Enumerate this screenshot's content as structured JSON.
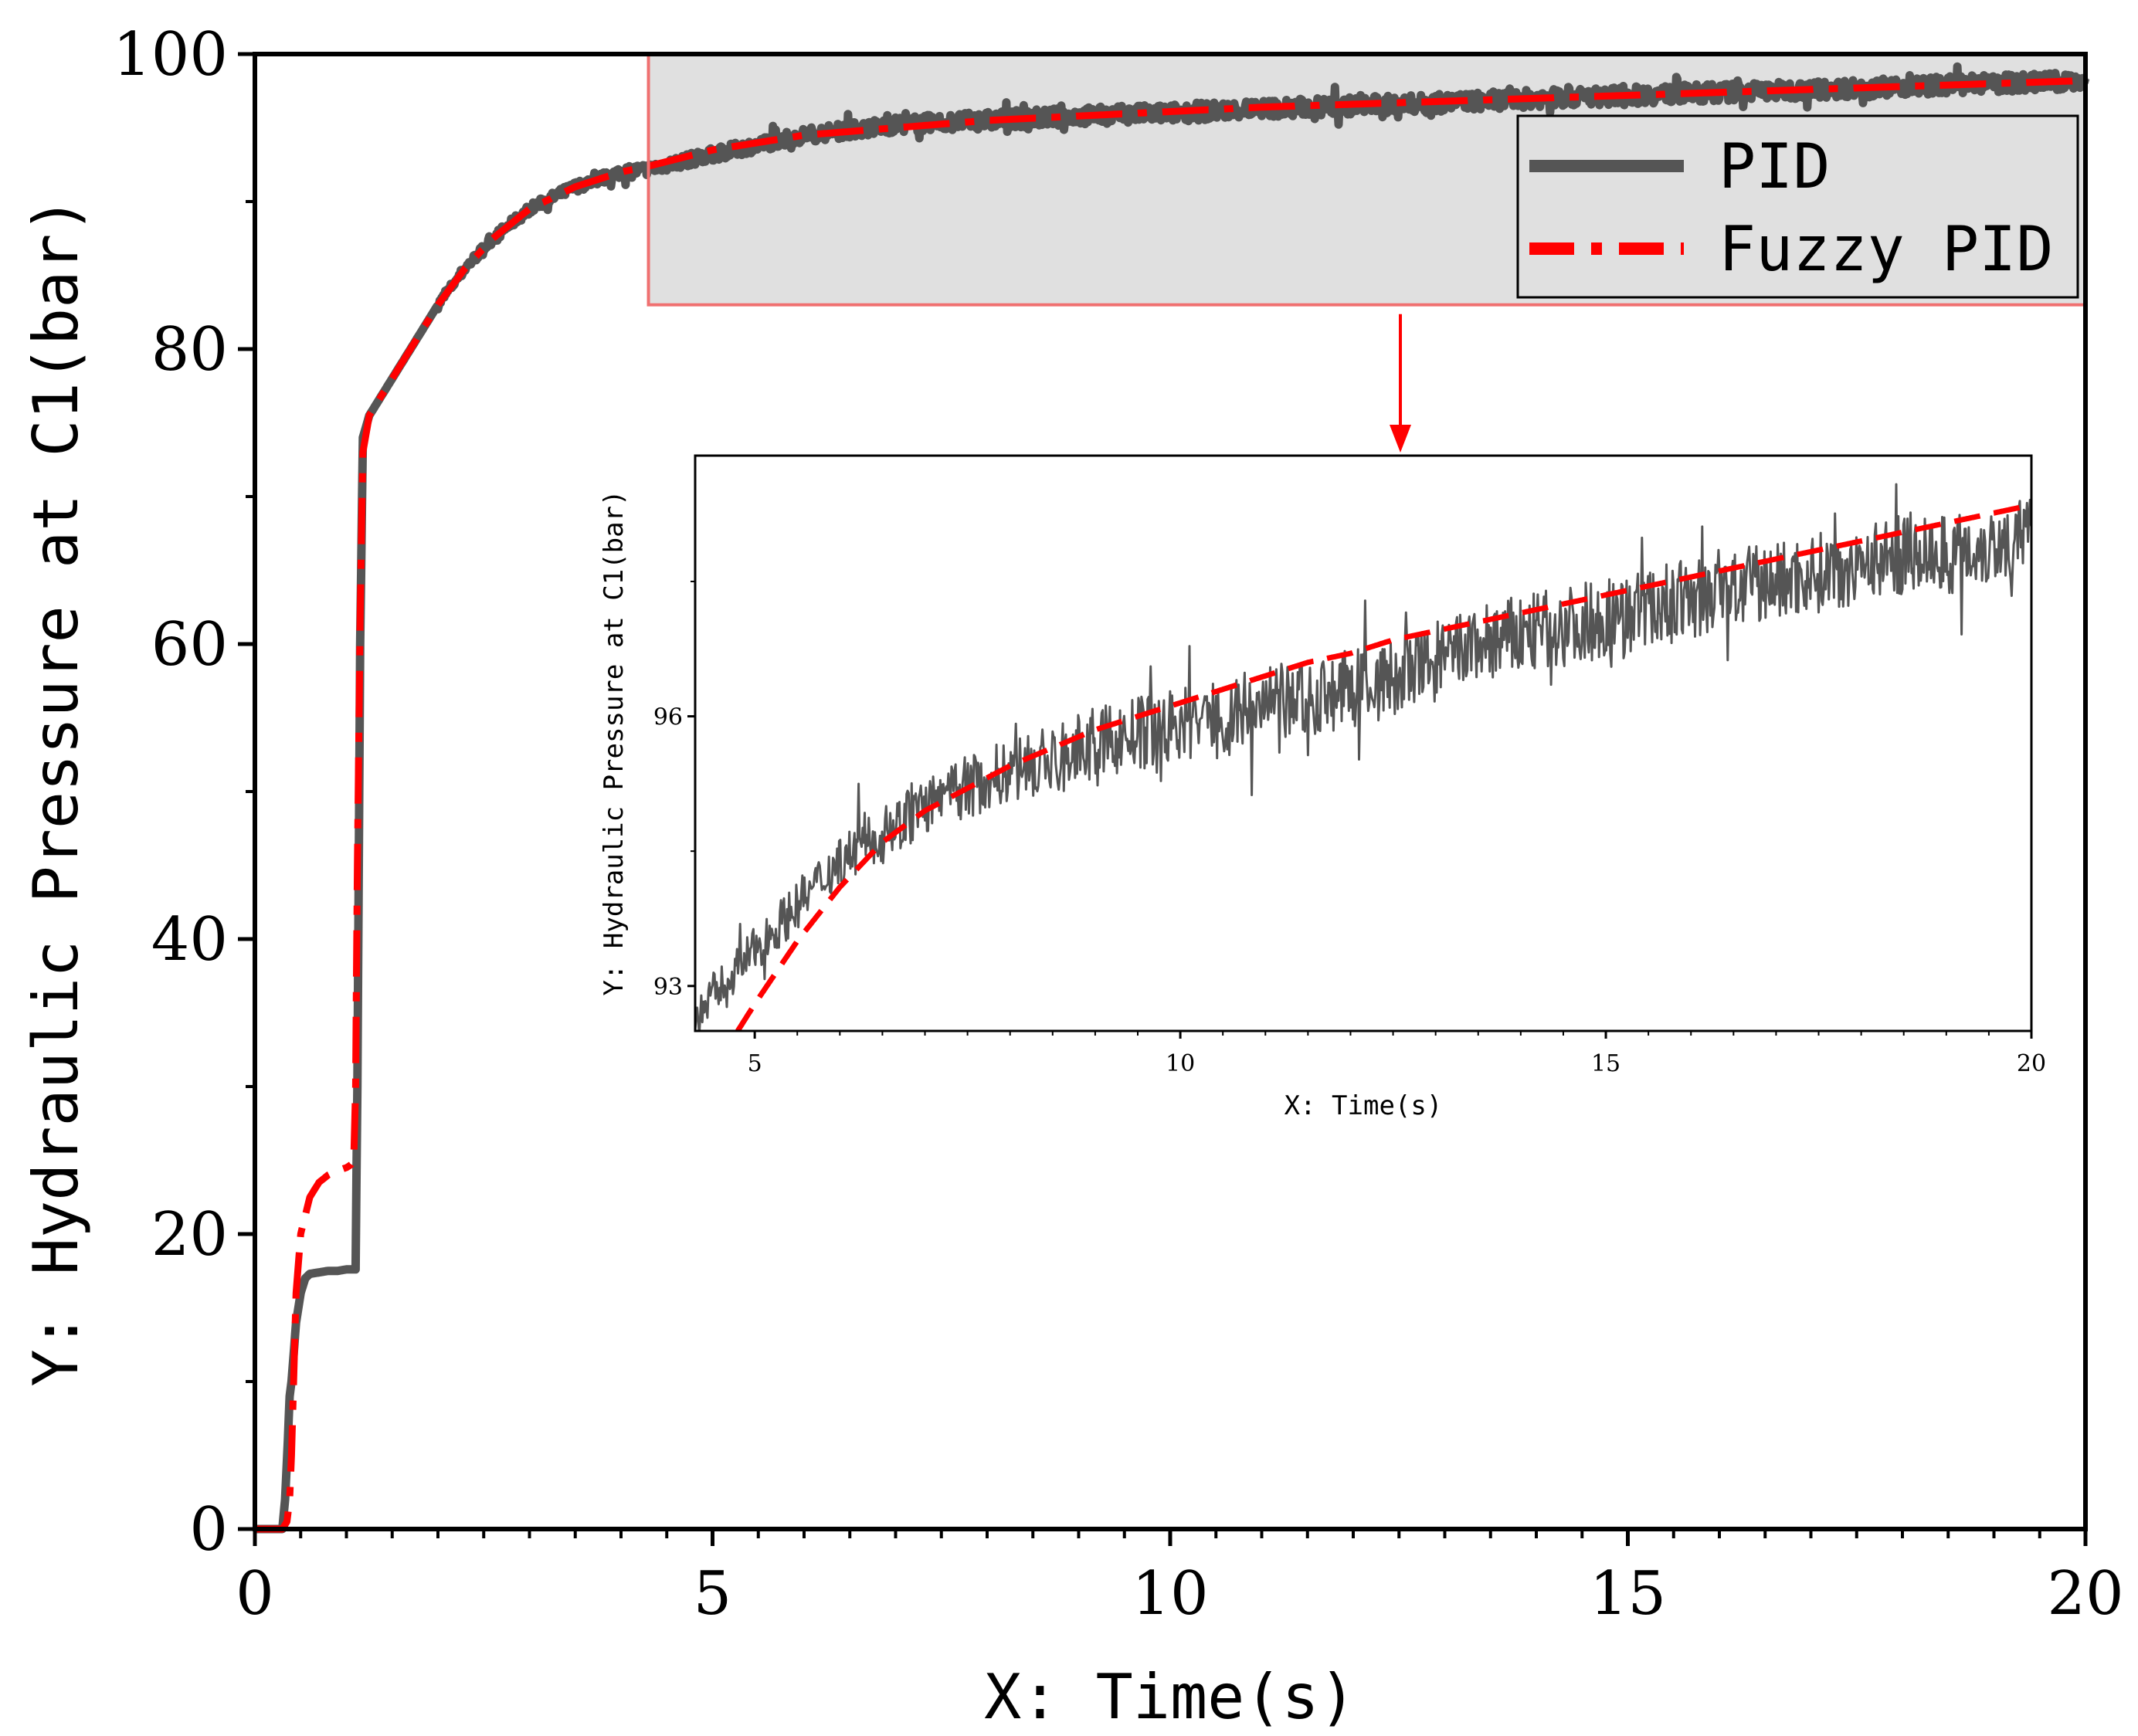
{
  "chart_data": [
    {
      "type": "line",
      "role": "main",
      "title": "",
      "xlabel": "X: Time(s)",
      "ylabel": "Y: Hydraulic Pressure at C1(bar)",
      "xlim": [
        0,
        20
      ],
      "ylim": [
        0,
        100
      ],
      "xticks": [
        0,
        5,
        10,
        15,
        20
      ],
      "yticks": [
        0,
        20,
        40,
        60,
        80,
        100
      ],
      "xtick_labels": [
        "0",
        "5",
        "10",
        "15",
        "20"
      ],
      "ytick_labels": [
        "0",
        "20",
        "40",
        "60",
        "80",
        "100"
      ],
      "grid": false,
      "legend": {
        "position": "top-right",
        "entries": [
          "PID",
          "Fuzzy PID"
        ]
      },
      "zoom_region": {
        "x": [
          4.3,
          20
        ],
        "y": [
          83,
          100
        ]
      },
      "series": [
        {
          "name": "PID",
          "color": "#555555",
          "style": "solid",
          "noise": 0.6,
          "x": [
            0,
            0.3,
            0.33,
            0.36,
            0.38,
            0.4,
            0.45,
            0.5,
            0.55,
            0.6,
            0.7,
            0.8,
            0.9,
            1.0,
            1.05,
            1.1,
            1.12,
            1.15,
            1.18,
            1.25,
            1.4,
            1.6,
            1.8,
            2.0,
            2.3,
            2.6,
            3.0,
            3.5,
            4.0,
            4.3,
            5.0,
            6.0,
            7.0,
            8.0,
            9.0,
            10.0,
            11.0,
            12.0,
            13.0,
            14.0,
            15.0,
            16.0,
            17.0,
            18.0,
            19.0,
            20.0
          ],
          "y": [
            0,
            0,
            2,
            6,
            9,
            10,
            14,
            16,
            17,
            17.3,
            17.4,
            17.5,
            17.5,
            17.6,
            17.6,
            17.6,
            30,
            60,
            74,
            75.5,
            77,
            79,
            81,
            83,
            85.5,
            87.5,
            89.5,
            91,
            92,
            92.2,
            93.2,
            94.5,
            95.2,
            95.5,
            95.8,
            96.0,
            96.3,
            96.5,
            96.7,
            97.0,
            97.2,
            97.4,
            97.6,
            97.8,
            98.0,
            98.2
          ]
        },
        {
          "name": "Fuzzy PID",
          "color": "#ff0000",
          "style": "dash-dot",
          "noise": 0,
          "x": [
            0,
            0.3,
            0.35,
            0.38,
            0.4,
            0.45,
            0.5,
            0.6,
            0.7,
            0.8,
            0.9,
            1.0,
            1.05,
            1.08,
            1.1,
            1.12,
            1.15,
            1.18,
            1.25,
            1.4,
            1.6,
            1.8,
            2.0,
            2.3,
            2.6,
            3.0,
            3.5,
            4.0,
            4.3,
            5.0,
            6.0,
            7.0,
            8.0,
            9.0,
            10.0,
            11.0,
            12.0,
            13.0,
            14.0,
            15.0,
            16.0,
            17.0,
            18.0,
            19.0,
            20.0
          ],
          "y": [
            0,
            0,
            0.5,
            2,
            5,
            16,
            20,
            22.5,
            23.5,
            24,
            24.3,
            24.5,
            24.7,
            25,
            30,
            45,
            62,
            73,
            75.5,
            77,
            79,
            81,
            83,
            85.5,
            87.5,
            89.5,
            91,
            92,
            92.4,
            93.5,
            94.5,
            95.0,
            95.5,
            95.8,
            96.1,
            96.4,
            96.6,
            96.8,
            97.0,
            97.2,
            97.4,
            97.6,
            97.8,
            98.0,
            98.2
          ]
        }
      ]
    },
    {
      "type": "line",
      "role": "inset",
      "title": "",
      "xlabel": "X: Time(s)",
      "ylabel": "Y: Hydraulic Pressure at C1(bar)",
      "xlim": [
        4.3,
        20
      ],
      "ylim": [
        92.5,
        98.9
      ],
      "xticks": [
        5,
        10,
        15,
        20
      ],
      "yticks": [
        93,
        96
      ],
      "xtick_labels": [
        "5",
        "10",
        "15",
        "20"
      ],
      "ytick_labels": [
        "93",
        "96"
      ],
      "grid": false,
      "series": [
        {
          "name": "PID",
          "color": "#555555",
          "style": "solid",
          "noise": 0.45,
          "x": [
            4.3,
            4.5,
            5.0,
            5.5,
            6.0,
            6.5,
            7.0,
            7.5,
            8.0,
            8.5,
            9.0,
            9.5,
            10.0,
            10.5,
            11.0,
            11.5,
            12.0,
            12.5,
            13.0,
            13.5,
            14.0,
            14.5,
            15.0,
            15.5,
            16.0,
            16.5,
            17.0,
            17.5,
            18.0,
            18.5,
            19.0,
            19.5,
            20.0
          ],
          "y": [
            92.6,
            92.9,
            93.4,
            93.9,
            94.4,
            94.7,
            95.0,
            95.2,
            95.4,
            95.5,
            95.7,
            95.8,
            95.9,
            96.0,
            96.1,
            96.2,
            96.3,
            96.4,
            96.6,
            96.8,
            96.9,
            97.0,
            97.1,
            97.2,
            97.3,
            97.4,
            97.5,
            97.6,
            97.7,
            97.8,
            97.8,
            97.9,
            98.0
          ]
        },
        {
          "name": "Fuzzy PID",
          "color": "#ff0000",
          "style": "dashed",
          "noise": 0,
          "x": [
            4.8,
            5.0,
            5.5,
            6.0,
            6.5,
            7.0,
            7.5,
            8.0,
            8.5,
            9.0,
            9.5,
            10.0,
            10.5,
            11.0,
            11.5,
            12.0,
            12.5,
            13.0,
            13.5,
            14.0,
            14.5,
            15.0,
            15.5,
            16.0,
            16.5,
            17.0,
            17.5,
            18.0,
            18.5,
            19.0,
            19.5,
            20.0
          ],
          "y": [
            92.5,
            92.8,
            93.5,
            94.1,
            94.6,
            94.95,
            95.2,
            95.45,
            95.65,
            95.85,
            96.0,
            96.15,
            96.3,
            96.45,
            96.6,
            96.7,
            96.85,
            96.95,
            97.05,
            97.15,
            97.25,
            97.35,
            97.45,
            97.55,
            97.65,
            97.75,
            97.85,
            97.95,
            98.05,
            98.15,
            98.25,
            98.35
          ]
        }
      ]
    }
  ]
}
